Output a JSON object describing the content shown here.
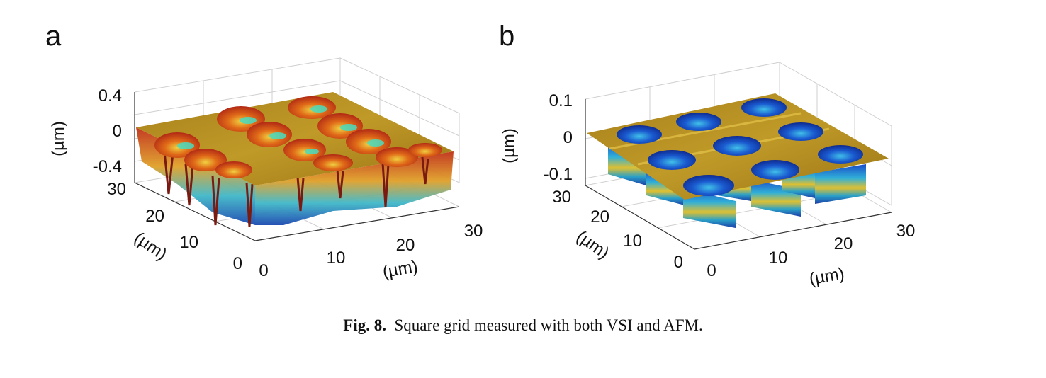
{
  "figure": {
    "panels": [
      {
        "letter": "a",
        "z_ticks": [
          "0.4",
          "0",
          "-0.4"
        ],
        "z_unit": "(µm)",
        "y_ticks": [
          "30",
          "20",
          "10",
          "0"
        ],
        "y_unit": "(µm)",
        "x_ticks": [
          "0",
          "10",
          "20",
          "30"
        ],
        "x_unit": "(µm)"
      },
      {
        "letter": "b",
        "z_ticks": [
          "0.1",
          "0",
          "-0.1"
        ],
        "z_unit": "(µm)",
        "y_ticks": [
          "30",
          "20",
          "10",
          "0"
        ],
        "y_unit": "(µm)",
        "x_ticks": [
          "0",
          "10",
          "20",
          "30"
        ],
        "x_unit": "(µm)"
      }
    ],
    "colors": {
      "surface_gold": "#b88a1a",
      "surface_red": "#c8321a",
      "surface_orange": "#e0701a",
      "surface_yellow": "#e8d040",
      "surface_cyan": "#40d8b8",
      "well_blue": "#1a3fb8",
      "well_cyan": "#38b8e0"
    }
  },
  "caption": {
    "label": "Fig. 8.",
    "text": "Square grid measured with both VSI and AFM."
  }
}
